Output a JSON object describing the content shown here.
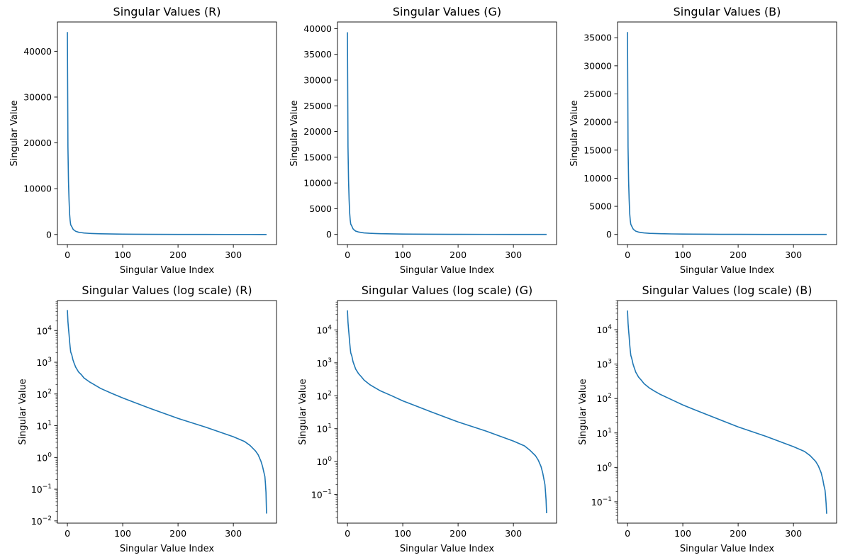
{
  "figure": {
    "background": "#ffffff",
    "line_color": "#1f77b4"
  },
  "chart_data": [
    {
      "type": "line",
      "title": "Singular Values (R)",
      "xlabel": "Singular Value Index",
      "ylabel": "Singular Value",
      "yscale": "linear",
      "xlim": [
        -18,
        378
      ],
      "ylim": [
        -2200,
        46400
      ],
      "xticks": [
        0,
        100,
        200,
        300
      ],
      "yticks": [
        0,
        10000,
        20000,
        30000,
        40000
      ],
      "grid": false,
      "series": [
        {
          "x": [
            0,
            1,
            2,
            3,
            4,
            5,
            6,
            8,
            10,
            12,
            15,
            20,
            25,
            30,
            40,
            50,
            60,
            80,
            100,
            120,
            150,
            200,
            250,
            300,
            330,
            350,
            355,
            360
          ],
          "y": [
            44200,
            19000,
            11500,
            7500,
            4500,
            3000,
            2100,
            1700,
            1200,
            950,
            700,
            500,
            410,
            320,
            240,
            190,
            150,
            105,
            75,
            55,
            35,
            20,
            13,
            7,
            4,
            1,
            0.5,
            0.02
          ]
        }
      ]
    },
    {
      "type": "line",
      "title": "Singular Values (G)",
      "xlabel": "Singular Value Index",
      "ylabel": "Singular Value",
      "yscale": "linear",
      "xlim": [
        -18,
        378
      ],
      "ylim": [
        -1970,
        41300
      ],
      "xticks": [
        0,
        100,
        200,
        300
      ],
      "yticks": [
        0,
        5000,
        10000,
        15000,
        20000,
        25000,
        30000,
        35000,
        40000
      ],
      "grid": false,
      "series": [
        {
          "x": [
            0,
            1,
            2,
            3,
            4,
            5,
            6,
            8,
            10,
            12,
            15,
            20,
            25,
            30,
            40,
            50,
            60,
            80,
            100,
            120,
            150,
            200,
            250,
            300,
            330,
            350,
            355,
            360
          ],
          "y": [
            39300,
            17000,
            10500,
            6800,
            4200,
            2800,
            2000,
            1600,
            1100,
            880,
            640,
            470,
            380,
            300,
            220,
            175,
            140,
            100,
            70,
            52,
            33,
            19,
            12,
            6.5,
            3.8,
            0.9,
            0.3,
            0.027
          ]
        }
      ]
    },
    {
      "type": "line",
      "title": "Singular Values (B)",
      "xlabel": "Singular Value Index",
      "ylabel": "Singular Value",
      "yscale": "linear",
      "xlim": [
        -18,
        378
      ],
      "ylim": [
        -1800,
        37800
      ],
      "xticks": [
        0,
        100,
        200,
        300
      ],
      "yticks": [
        0,
        5000,
        10000,
        15000,
        20000,
        25000,
        30000,
        35000
      ],
      "grid": false,
      "series": [
        {
          "x": [
            0,
            1,
            2,
            3,
            4,
            5,
            6,
            8,
            10,
            12,
            15,
            20,
            25,
            30,
            40,
            50,
            60,
            80,
            100,
            120,
            150,
            200,
            250,
            300,
            330,
            350,
            355,
            360
          ],
          "y": [
            36000,
            15500,
            9500,
            6200,
            3700,
            2500,
            1800,
            1400,
            1000,
            800,
            580,
            420,
            340,
            270,
            200,
            160,
            130,
            92,
            65,
            48,
            31,
            18,
            11,
            6,
            3.5,
            0.8,
            0.3,
            0.045
          ]
        }
      ]
    },
    {
      "type": "line",
      "title": "Singular Values (log scale) (R)",
      "xlabel": "Singular Value Index",
      "ylabel": "Singular Value",
      "yscale": "log",
      "xlim": [
        -18,
        378
      ],
      "ylim": [
        0.0085,
        88000
      ],
      "xticks": [
        0,
        100,
        200,
        300
      ],
      "yticks": [
        0.01,
        0.1,
        1,
        10,
        100,
        1000,
        10000
      ],
      "ytick_labels": [
        {
          "base": "10",
          "exp": "−2"
        },
        {
          "base": "10",
          "exp": "−1"
        },
        {
          "base": "10",
          "exp": "0"
        },
        {
          "base": "10",
          "exp": "1"
        },
        {
          "base": "10",
          "exp": "2"
        },
        {
          "base": "10",
          "exp": "3"
        },
        {
          "base": "10",
          "exp": "4"
        }
      ],
      "grid": false,
      "series": [
        {
          "x": [
            0,
            1,
            2,
            3,
            4,
            5,
            6,
            8,
            10,
            12,
            15,
            20,
            25,
            30,
            40,
            50,
            60,
            80,
            100,
            120,
            150,
            200,
            250,
            300,
            320,
            330,
            340,
            345,
            350,
            353,
            355,
            357,
            358,
            359,
            360
          ],
          "y": [
            44200,
            19000,
            11500,
            7500,
            4500,
            3000,
            2100,
            1700,
            1200,
            950,
            700,
            500,
            410,
            320,
            240,
            190,
            150,
            105,
            75,
            55,
            35,
            17,
            9,
            4.5,
            3.2,
            2.4,
            1.6,
            1.2,
            0.75,
            0.5,
            0.35,
            0.25,
            0.15,
            0.08,
            0.017
          ]
        }
      ]
    },
    {
      "type": "line",
      "title": "Singular Values (log scale) (G)",
      "xlabel": "Singular Value Index",
      "ylabel": "Singular Value",
      "yscale": "log",
      "xlim": [
        -18,
        378
      ],
      "ylim": [
        0.0135,
        78000
      ],
      "xticks": [
        0,
        100,
        200,
        300
      ],
      "yticks": [
        0.1,
        1,
        10,
        100,
        1000,
        10000
      ],
      "ytick_labels": [
        {
          "base": "10",
          "exp": "−1"
        },
        {
          "base": "10",
          "exp": "0"
        },
        {
          "base": "10",
          "exp": "1"
        },
        {
          "base": "10",
          "exp": "2"
        },
        {
          "base": "10",
          "exp": "3"
        },
        {
          "base": "10",
          "exp": "4"
        }
      ],
      "grid": false,
      "series": [
        {
          "x": [
            0,
            1,
            2,
            3,
            4,
            5,
            6,
            8,
            10,
            12,
            15,
            20,
            25,
            30,
            40,
            50,
            60,
            80,
            100,
            120,
            150,
            200,
            250,
            300,
            320,
            330,
            340,
            345,
            350,
            353,
            355,
            357,
            358,
            359,
            360
          ],
          "y": [
            39300,
            17000,
            10500,
            6800,
            4200,
            2800,
            2000,
            1600,
            1100,
            880,
            640,
            470,
            380,
            300,
            220,
            175,
            140,
            100,
            70,
            52,
            33,
            16,
            8.5,
            4.2,
            3,
            2.2,
            1.5,
            1.1,
            0.7,
            0.45,
            0.3,
            0.2,
            0.12,
            0.07,
            0.027
          ]
        }
      ]
    },
    {
      "type": "line",
      "title": "Singular Values (log scale) (B)",
      "xlabel": "Singular Value Index",
      "ylabel": "Singular Value",
      "yscale": "log",
      "xlim": [
        -18,
        378
      ],
      "ylim": [
        0.024,
        70000
      ],
      "xticks": [
        0,
        100,
        200,
        300
      ],
      "yticks": [
        0.1,
        1,
        10,
        100,
        1000,
        10000
      ],
      "ytick_labels": [
        {
          "base": "10",
          "exp": "−1"
        },
        {
          "base": "10",
          "exp": "0"
        },
        {
          "base": "10",
          "exp": "1"
        },
        {
          "base": "10",
          "exp": "2"
        },
        {
          "base": "10",
          "exp": "3"
        },
        {
          "base": "10",
          "exp": "4"
        }
      ],
      "grid": false,
      "series": [
        {
          "x": [
            0,
            1,
            2,
            3,
            4,
            5,
            6,
            8,
            10,
            12,
            15,
            20,
            25,
            30,
            40,
            50,
            60,
            80,
            100,
            120,
            150,
            200,
            250,
            300,
            320,
            330,
            340,
            345,
            350,
            353,
            355,
            357,
            358,
            359,
            360
          ],
          "y": [
            36000,
            15500,
            9500,
            6200,
            3700,
            2500,
            1800,
            1400,
            1000,
            800,
            580,
            420,
            340,
            270,
            200,
            160,
            130,
            92,
            65,
            48,
            31,
            15,
            8,
            4,
            2.9,
            2.2,
            1.5,
            1.1,
            0.7,
            0.45,
            0.3,
            0.22,
            0.15,
            0.09,
            0.045
          ]
        }
      ]
    }
  ]
}
